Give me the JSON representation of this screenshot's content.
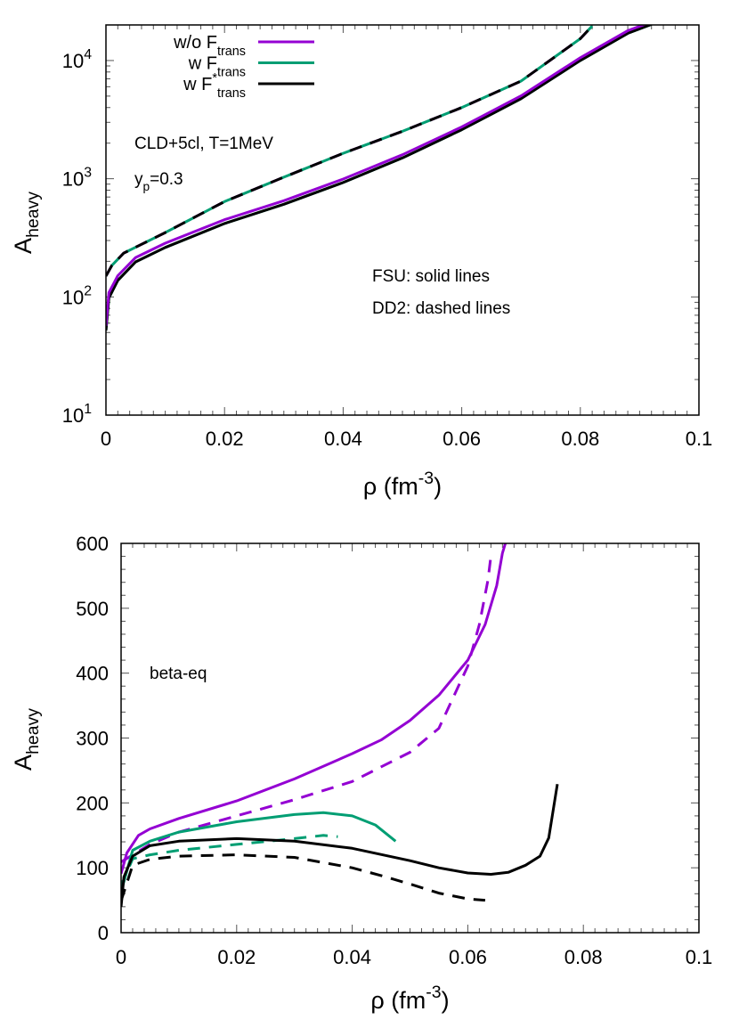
{
  "chart_data": [
    {
      "type": "line",
      "xlabel": "ρ (fm-3)",
      "xlabel_parts": {
        "main": "ρ (fm",
        "sup": "-3",
        "tail": ")"
      },
      "ylabel": "Aheavy",
      "ylabel_parts": {
        "main": "A",
        "sub": "heavy"
      },
      "xlim": [
        0,
        0.1
      ],
      "ylim": [
        10,
        20000
      ],
      "yscale": "log",
      "xticks": [
        "0",
        "0.02",
        "0.04",
        "0.06",
        "0.08",
        "0.1"
      ],
      "yticks": [
        {
          "base": "10",
          "exp": "1"
        },
        {
          "base": "10",
          "exp": "2"
        },
        {
          "base": "10",
          "exp": "3"
        },
        {
          "base": "10",
          "exp": "4"
        }
      ],
      "legend_position": "top-left",
      "legend": [
        {
          "prefix": "w/o F",
          "sub": "trans",
          "sup": "",
          "color": "#9400D3"
        },
        {
          "prefix": "w F",
          "sub": "trans",
          "sup": "",
          "color": "#009E73"
        },
        {
          "prefix": "w F",
          "sub": "trans",
          "sup": "*",
          "color": "#000000"
        }
      ],
      "annotations": {
        "model": "CLD+5cl, T=1MeV",
        "yp": {
          "main": "y",
          "sub": "p",
          "tail": "=0.3"
        },
        "fsu": "FSU: solid lines",
        "dd2": "DD2: dashed lines"
      },
      "series": [
        {
          "name": "w/o Ftrans",
          "eos": "FSU",
          "style": "solid",
          "color": "#9400D3",
          "x": [
            0,
            0.0005,
            0.002,
            0.005,
            0.01,
            0.02,
            0.03,
            0.04,
            0.05,
            0.06,
            0.07,
            0.08,
            0.088,
            0.092
          ],
          "y": [
            55,
            105,
            146,
            208,
            275,
            435,
            630,
            960,
            1540,
            2650,
            4850,
            10200,
            17300,
            20500
          ]
        },
        {
          "name": "w Ftrans",
          "eos": "FSU",
          "style": "solid",
          "color": "#009E73",
          "x": [
            0,
            0.0005,
            0.002,
            0.005,
            0.01,
            0.02,
            0.03,
            0.04,
            0.05,
            0.06,
            0.07,
            0.08,
            0.088,
            0.092
          ],
          "y": [
            52,
            98,
            138,
            198,
            262,
            418,
            608,
            928,
            1500,
            2600,
            4750,
            10000,
            17000,
            20200
          ]
        },
        {
          "name": "w F*trans",
          "eos": "FSU",
          "style": "solid",
          "color": "#000000",
          "x": [
            0,
            0.0005,
            0.002,
            0.005,
            0.01,
            0.02,
            0.03,
            0.04,
            0.05,
            0.06,
            0.07,
            0.08,
            0.088,
            0.092
          ],
          "y": [
            52,
            98,
            138,
            198,
            262,
            418,
            608,
            928,
            1500,
            2600,
            4750,
            10000,
            17000,
            20200
          ]
        },
        {
          "name": "w/o Ftrans",
          "eos": "DD2",
          "style": "dashed",
          "color": "#9400D3",
          "x": [
            0,
            0.001,
            0.003,
            0.01,
            0.02,
            0.03,
            0.04,
            0.05,
            0.06,
            0.07,
            0.08,
            0.082
          ],
          "y": [
            150,
            185,
            235,
            350,
            640,
            1030,
            1640,
            2520,
            4000,
            6700,
            15300,
            19600
          ]
        },
        {
          "name": "w Ftrans",
          "eos": "DD2",
          "style": "dashed",
          "color": "#009E73",
          "x": [
            0,
            0.001,
            0.003,
            0.01,
            0.02,
            0.03,
            0.04,
            0.05,
            0.06,
            0.07,
            0.08,
            0.082
          ],
          "y": [
            150,
            185,
            235,
            350,
            640,
            1030,
            1640,
            2520,
            4000,
            6700,
            15300,
            19600
          ]
        },
        {
          "name": "w F*trans",
          "eos": "DD2",
          "style": "dashed",
          "color": "#000000",
          "x": [
            0,
            0.001,
            0.003,
            0.01,
            0.02,
            0.03,
            0.04,
            0.05,
            0.06,
            0.07,
            0.08,
            0.082
          ],
          "y": [
            150,
            185,
            235,
            350,
            640,
            1030,
            1640,
            2520,
            4000,
            6700,
            15300,
            19600
          ]
        }
      ]
    },
    {
      "type": "line",
      "xlabel": "ρ (fm-3)",
      "xlabel_parts": {
        "main": "ρ (fm",
        "sup": "-3",
        "tail": ")"
      },
      "ylabel": "Aheavy",
      "ylabel_parts": {
        "main": "A",
        "sub": "heavy"
      },
      "xlim": [
        0,
        0.1
      ],
      "ylim": [
        0,
        600
      ],
      "yscale": "linear",
      "xticks": [
        "0",
        "0.02",
        "0.04",
        "0.06",
        "0.08",
        "0.1"
      ],
      "yticks": [
        "0",
        "100",
        "200",
        "300",
        "400",
        "500",
        "600"
      ],
      "annotations": {
        "label": "beta-eq"
      },
      "series": [
        {
          "name": "w/o Ftrans",
          "eos": "FSU",
          "style": "solid",
          "color": "#9400D3",
          "x": [
            0,
            0.001,
            0.003,
            0.005,
            0.01,
            0.02,
            0.03,
            0.04,
            0.045,
            0.05,
            0.055,
            0.06,
            0.063,
            0.065,
            0.066,
            0.0665
          ],
          "y": [
            91,
            123,
            150,
            160,
            176,
            203,
            237,
            276,
            297,
            327,
            366,
            420,
            475,
            535,
            585,
            600
          ]
        },
        {
          "name": "w/o Ftrans",
          "eos": "DD2",
          "style": "dashed",
          "color": "#9400D3",
          "x": [
            0,
            0.005,
            0.01,
            0.02,
            0.03,
            0.04,
            0.05,
            0.055,
            0.06,
            0.062,
            0.0635,
            0.064
          ],
          "y": [
            109,
            136,
            155,
            180,
            205,
            233,
            278,
            315,
            411,
            475,
            544,
            581
          ]
        },
        {
          "name": "w Ftrans",
          "eos": "FSU",
          "style": "solid",
          "color": "#009E73",
          "x": [
            0,
            0.002,
            0.005,
            0.01,
            0.02,
            0.03,
            0.035,
            0.04,
            0.044,
            0.0475
          ],
          "y": [
            63,
            127,
            141,
            155,
            171,
            182,
            185,
            180,
            166,
            141
          ]
        },
        {
          "name": "w Ftrans",
          "eos": "DD2",
          "style": "dashed",
          "color": "#009E73",
          "x": [
            0,
            0.002,
            0.005,
            0.01,
            0.02,
            0.03,
            0.035,
            0.0375
          ],
          "y": [
            72,
            114,
            120,
            127,
            136,
            145,
            150,
            148
          ]
        },
        {
          "name": "w F*trans",
          "eos": "FSU",
          "style": "solid",
          "color": "#000000",
          "x": [
            0,
            0.0005,
            0.002,
            0.005,
            0.01,
            0.02,
            0.03,
            0.04,
            0.05,
            0.055,
            0.06,
            0.064,
            0.067,
            0.07,
            0.0725,
            0.074,
            0.0755
          ],
          "y": [
            40,
            86,
            118,
            134,
            141,
            145,
            141,
            130,
            111,
            100,
            92,
            90,
            93,
            104,
            118,
            146,
            229
          ]
        },
        {
          "name": "w F*trans",
          "eos": "DD2",
          "style": "dashed",
          "color": "#000000",
          "x": [
            0,
            0.002,
            0.005,
            0.01,
            0.02,
            0.03,
            0.04,
            0.045,
            0.05,
            0.055,
            0.06,
            0.063
          ],
          "y": [
            49,
            104,
            113,
            118,
            120,
            116,
            100,
            88,
            75,
            61,
            52,
            50
          ]
        }
      ]
    }
  ]
}
